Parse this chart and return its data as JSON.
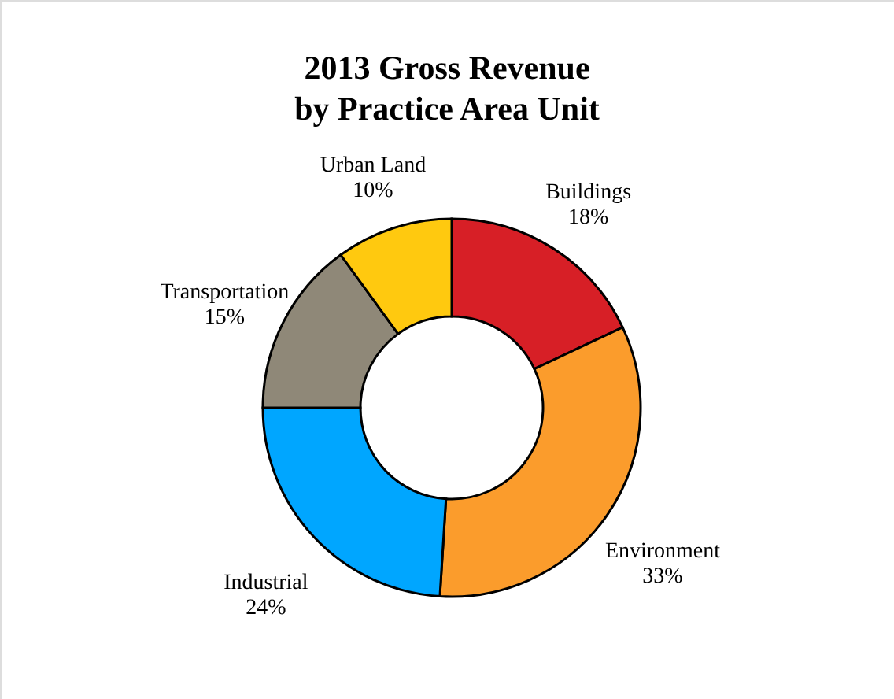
{
  "chart_data": {
    "type": "donut",
    "title": "2013 Gross Revenue\nby Practice Area Unit",
    "categories": [
      "Buildings",
      "Environment",
      "Industrial",
      "Transportation",
      "Urban Land"
    ],
    "values": [
      18,
      33,
      24,
      15,
      10
    ],
    "value_labels": [
      "18%",
      "33%",
      "24%",
      "15%",
      "10%"
    ],
    "colors": [
      "#d71f26",
      "#fb9c2c",
      "#00a6ff",
      "#8f8878",
      "#ffc90f"
    ]
  }
}
